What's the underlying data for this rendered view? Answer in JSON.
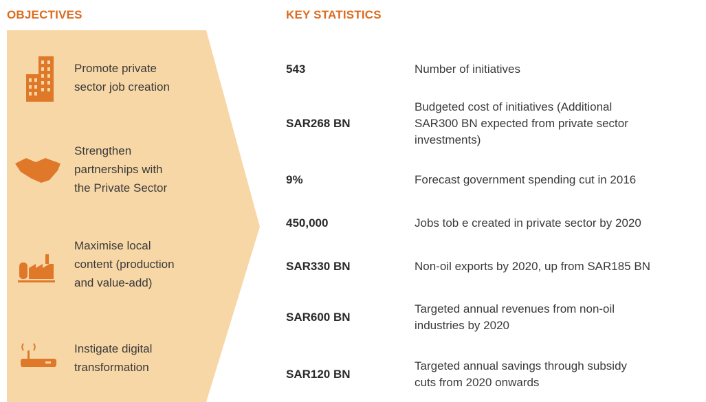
{
  "objectives": {
    "title": "OBJECTIVES",
    "items": [
      {
        "lines": [
          "Promote private",
          "sector job creation"
        ]
      },
      {
        "lines": [
          "Strengthen",
          "partnerships with",
          "the Private Sector"
        ]
      },
      {
        "lines": [
          "Maximise local",
          "content (production",
          "and value-add)"
        ]
      },
      {
        "lines": [
          "Instigate digital",
          "transformation"
        ]
      }
    ]
  },
  "statistics": {
    "title": "KEY STATISTICS",
    "rows": [
      {
        "value": "543",
        "lines": [
          "Number of initiatives"
        ]
      },
      {
        "value": "SAR268 BN",
        "lines": [
          "Budgeted cost of initiatives (Additional",
          "SAR300 BN expected from private sector",
          "investments)"
        ]
      },
      {
        "value": "9%",
        "lines": [
          "Forecast government spending cut in 2016"
        ]
      },
      {
        "value": "450,000",
        "lines": [
          "Jobs tob e created in private sector by 2020"
        ]
      },
      {
        "value": "SAR330 BN",
        "lines": [
          "Non-oil exports by 2020, up from SAR185 BN"
        ]
      },
      {
        "value": "SAR600 BN",
        "lines": [
          "Targeted annual revenues from non-oil",
          "industries by 2020"
        ]
      },
      {
        "value": "SAR120 BN",
        "lines": [
          "Targeted annual savings through subsidy",
          "cuts from 2020 onwards"
        ]
      }
    ]
  }
}
